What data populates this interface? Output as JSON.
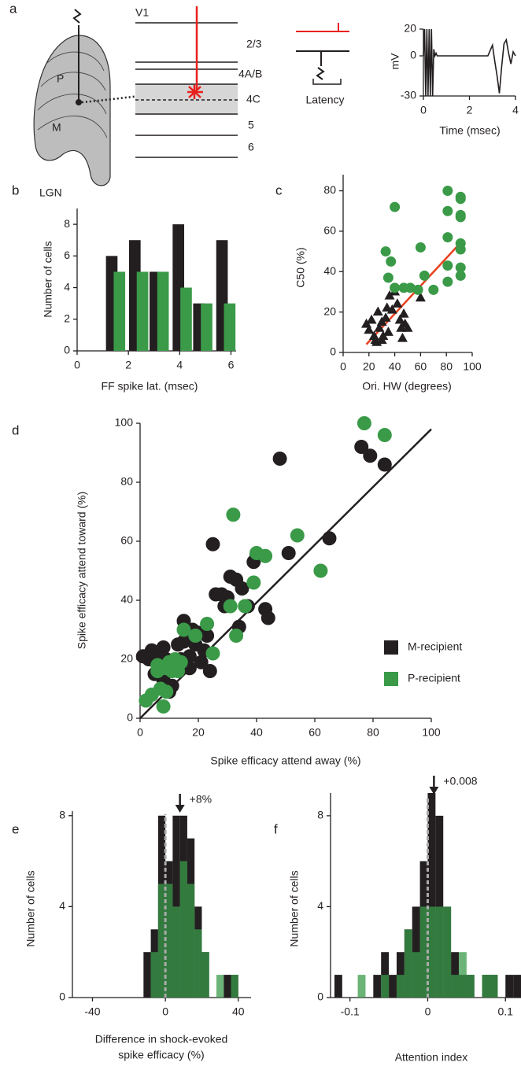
{
  "diagram": {
    "label": "a",
    "v1": "V1",
    "layers": [
      "2/3",
      "4A/B",
      "4C",
      "5",
      "6"
    ],
    "lgn": {
      "label": "LGN",
      "p": "P",
      "m": "M"
    },
    "latency": "Latency"
  },
  "chart_data": [
    {
      "type": "line",
      "xlabel": "Time (msec)",
      "ylabel": "mV",
      "color": "#231f20",
      "x": [
        0,
        0.05,
        0.1,
        0.15,
        0.2,
        0.25,
        0.3,
        0.35,
        0.4,
        0.45,
        0.5,
        0.55,
        0.6,
        1,
        2,
        2.8,
        2.9,
        3,
        3.1,
        3.2,
        3.3,
        3.4,
        3.5,
        3.6,
        3.7,
        3.8,
        3.9,
        4
      ],
      "values": [
        0,
        20,
        -30,
        20,
        -30,
        20,
        -30,
        20,
        -30,
        5,
        0,
        2,
        0,
        0,
        0,
        0,
        4,
        8,
        -4,
        -15,
        -28,
        -8,
        9,
        12,
        2,
        -6,
        3,
        0
      ],
      "xlim": [
        0,
        4
      ],
      "ylim": [
        -30,
        20
      ],
      "xticks": [
        0,
        2,
        4
      ],
      "yticks": [
        -30,
        0,
        20
      ]
    },
    {
      "type": "bar",
      "label": "b",
      "xlabel": "FF spike lat. (msec)",
      "ylabel": "Number of cells",
      "x": [
        1.5,
        2.4,
        3.2,
        4.1,
        4.9,
        5.8
      ],
      "series": [
        {
          "color": "#231f20",
          "values": [
            6,
            7,
            5,
            8,
            3,
            7
          ]
        },
        {
          "color": "#3a9a48",
          "values": [
            5,
            5,
            5,
            4,
            3,
            3
          ]
        }
      ],
      "xlim": [
        0,
        6.2
      ],
      "ylim": [
        0,
        9
      ],
      "xticks": [
        0,
        2,
        4,
        6
      ],
      "yticks": [
        0,
        2,
        4,
        6,
        8
      ]
    },
    {
      "type": "scatter",
      "label": "c",
      "xlabel": "Ori. HW (degrees)",
      "ylabel": "C50 (%)",
      "series": [
        {
          "marker": "triangle",
          "color": "#231f20",
          "x": [
            18,
            20,
            22,
            24,
            25,
            26,
            27,
            28,
            30,
            30,
            31,
            33,
            34,
            35,
            36,
            38,
            40,
            42,
            44,
            45,
            46,
            47,
            48,
            50,
            60
          ],
          "values": [
            14,
            11,
            16,
            8,
            6,
            5,
            20,
            12,
            15,
            6,
            8,
            17,
            22,
            10,
            28,
            21,
            30,
            24,
            16,
            12,
            7,
            19,
            14,
            12,
            27
          ]
        },
        {
          "marker": "circle",
          "color": "#3a9a48",
          "x": [
            33,
            37,
            40,
            35,
            40,
            47,
            52,
            58,
            60,
            63,
            70,
            81,
            81,
            81,
            81,
            81,
            91,
            91,
            91,
            91,
            91,
            91,
            91,
            91
          ],
          "values": [
            50,
            45,
            72,
            37,
            32,
            32,
            32,
            31,
            52,
            38,
            31,
            80,
            70,
            57,
            43,
            35,
            77,
            76,
            68,
            67,
            54,
            51,
            42,
            38
          ]
        }
      ],
      "fit_line": {
        "x": [
          18,
          92
        ],
        "values": [
          4,
          55
        ],
        "color": "#e8401c"
      },
      "xlim": [
        0,
        100
      ],
      "ylim": [
        0,
        88
      ],
      "xticks": [
        0,
        20,
        40,
        60,
        80,
        100
      ],
      "yticks": [
        0,
        20,
        40,
        60,
        80
      ]
    },
    {
      "type": "scatter",
      "label": "d",
      "xlabel": "Spike efficacy attend away (%)",
      "ylabel": "Spike efficacy attend toward (%)",
      "legend": "lower right",
      "series": [
        {
          "name": "M-recipient",
          "marker": "circle",
          "color": "#231f20",
          "x": [
            1,
            3,
            4,
            5,
            6,
            7,
            8,
            9,
            8,
            10,
            11,
            12,
            13,
            14,
            15,
            15,
            16,
            17,
            17,
            18,
            19,
            20,
            21,
            22,
            23,
            24,
            25,
            26,
            28,
            29,
            30,
            31,
            33,
            34,
            35,
            37,
            39,
            40,
            43,
            44,
            48,
            51,
            65,
            76,
            79,
            84
          ],
          "values": [
            21,
            20,
            23,
            15,
            18,
            22,
            24,
            20,
            13,
            9,
            11,
            17,
            25,
            20,
            26,
            33,
            28,
            21,
            17,
            30,
            25,
            29,
            19,
            23,
            28,
            16,
            59,
            42,
            42,
            38,
            41,
            48,
            47,
            31,
            44,
            38,
            53,
            55,
            37,
            34,
            88,
            56,
            61,
            92,
            89,
            86
          ]
        },
        {
          "name": "P-recipient",
          "marker": "circle",
          "color": "#3a9a48",
          "x": [
            2,
            4,
            6,
            6,
            7,
            8,
            9,
            9,
            10,
            11,
            12,
            13,
            14,
            15,
            19,
            23,
            25,
            31,
            32,
            33,
            36,
            39,
            40,
            43,
            54,
            62,
            77,
            84
          ],
          "values": [
            6,
            8,
            18,
            16,
            10,
            4,
            17,
            9,
            19,
            16,
            20,
            16,
            19,
            30,
            28,
            32,
            22,
            38,
            69,
            28,
            38,
            46,
            56,
            55,
            62,
            50,
            100,
            96
          ]
        }
      ],
      "fit_line": {
        "x": [
          0,
          100
        ],
        "values": [
          0,
          98
        ],
        "color": "#231f20"
      },
      "xlim": [
        0,
        100
      ],
      "ylim": [
        0,
        100
      ],
      "xticks": [
        0,
        20,
        40,
        60,
        80,
        100
      ],
      "yticks": [
        0,
        20,
        40,
        60,
        80,
        100
      ]
    },
    {
      "type": "histogram",
      "label": "e",
      "xlabel": [
        "Difference in shock-evoked",
        "spike efficacy (%)"
      ],
      "ylabel": "Number of cells",
      "bins": [
        -12,
        -8,
        -4,
        0,
        4,
        8,
        12,
        16,
        20,
        24,
        28,
        32,
        36,
        40
      ],
      "series": [
        {
          "color": "#231f20",
          "opacity": 1,
          "values": [
            2,
            3,
            8,
            6,
            8,
            8,
            7,
            4,
            2,
            0,
            0,
            1,
            1
          ]
        },
        {
          "color": "#3a9a48",
          "opacity": 0.75,
          "values": [
            0,
            2,
            5,
            5,
            4,
            6,
            5,
            3,
            2,
            0,
            1,
            0,
            1
          ]
        }
      ],
      "reference_line": {
        "value": 0,
        "color": "#aaaaaa"
      },
      "mean_marker": {
        "value": 8,
        "label": "+8%"
      },
      "xlim": [
        -51,
        47
      ],
      "ylim": [
        0,
        8.2
      ],
      "xticks": [
        -40,
        0,
        40
      ],
      "yticks": [
        0,
        4,
        8
      ]
    },
    {
      "type": "histogram",
      "label": "f",
      "xlabel": "Attention index",
      "ylabel": "Number of cells",
      "bins": [
        -0.12,
        -0.11,
        -0.1,
        -0.09,
        -0.08,
        -0.07,
        -0.06,
        -0.05,
        -0.04,
        -0.03,
        -0.02,
        -0.01,
        0,
        0.01,
        0.02,
        0.03,
        0.04,
        0.05,
        0.06,
        0.07,
        0.08,
        0.09,
        0.1,
        0.11,
        0.12
      ],
      "series": [
        {
          "color": "#231f20",
          "opacity": 1,
          "values": [
            1,
            0,
            0,
            0,
            0,
            1,
            2,
            1,
            2,
            3,
            4,
            6,
            9,
            8,
            4,
            2,
            1,
            1,
            0,
            1,
            1,
            0,
            1,
            1
          ]
        },
        {
          "color": "#3a9a48",
          "opacity": 0.75,
          "values": [
            0,
            0,
            0,
            1,
            0,
            0,
            1,
            0,
            1,
            3,
            2,
            4,
            4,
            4,
            4,
            1,
            2,
            1,
            0,
            1,
            1,
            0,
            0,
            0
          ]
        }
      ],
      "reference_line": {
        "value": 0,
        "color": "#aaaaaa"
      },
      "mean_marker": {
        "value": 0.008,
        "label": "+0.008"
      },
      "xlim": [
        -0.125,
        0.12
      ],
      "ylim": [
        0,
        9
      ],
      "xticks": [
        -0.1,
        0,
        0.1
      ],
      "yticks": [
        0,
        4,
        8
      ]
    }
  ]
}
